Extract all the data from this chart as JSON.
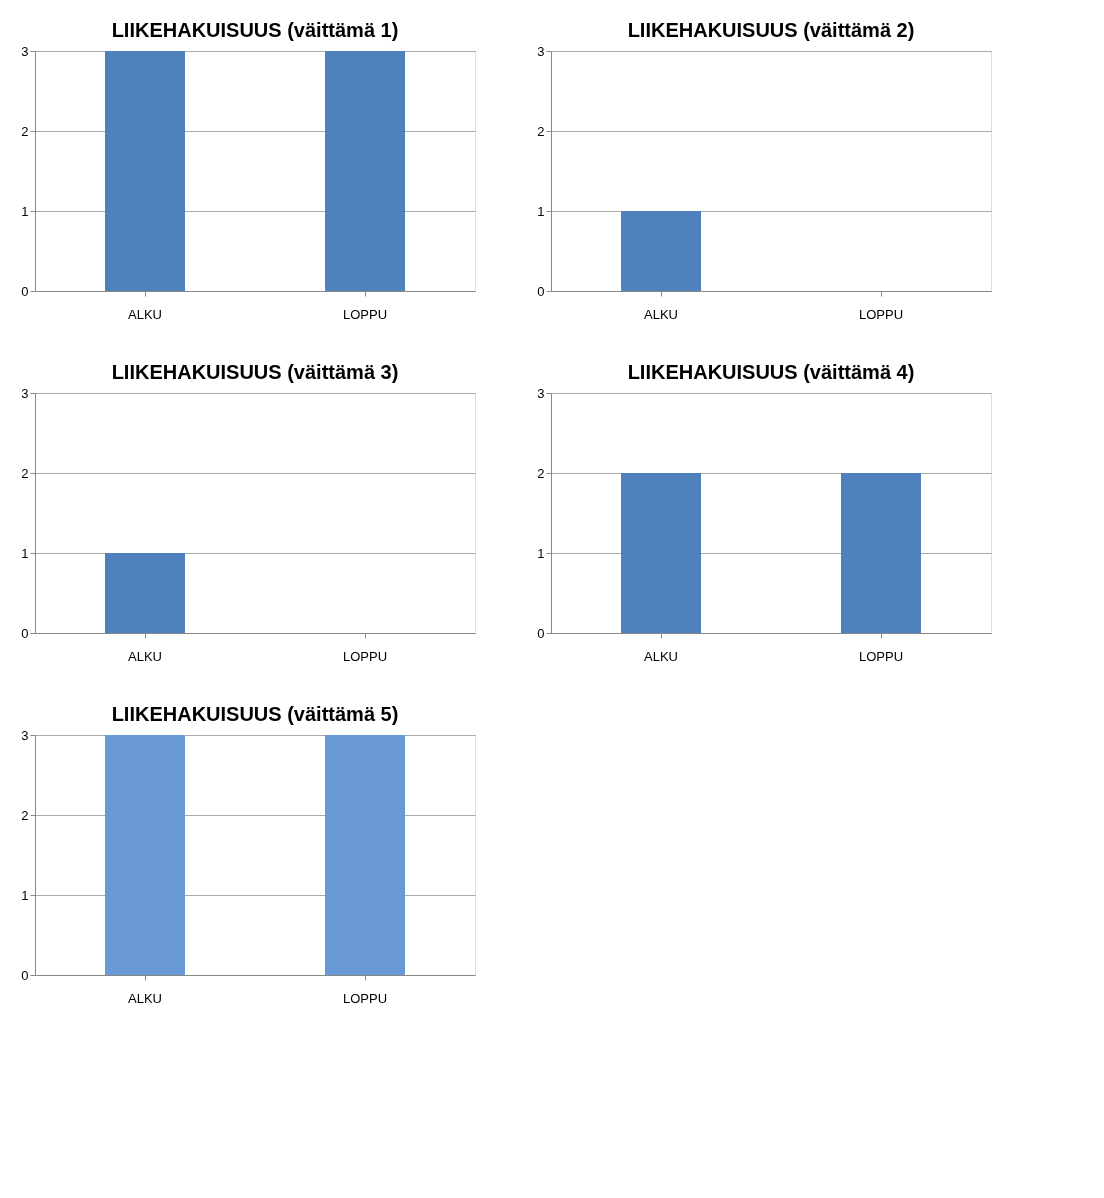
{
  "chart_data": [
    {
      "type": "bar",
      "title": "LIIKEHAKUISUUS (väittämä 1)",
      "categories": [
        "ALKU",
        "LOPPU"
      ],
      "values": [
        3,
        3
      ],
      "color": "#4f81bd",
      "ylim": [
        0,
        3
      ],
      "yticks": [
        0,
        1,
        2,
        3
      ],
      "grid": "y"
    },
    {
      "type": "bar",
      "title": "LIIKEHAKUISUUS (väittämä 2)",
      "categories": [
        "ALKU",
        "LOPPU"
      ],
      "values": [
        1,
        0
      ],
      "color": "#4f81bd",
      "ylim": [
        0,
        3
      ],
      "yticks": [
        0,
        1,
        2,
        3
      ],
      "grid": "y"
    },
    {
      "type": "bar",
      "title": "LIIKEHAKUISUUS (väittämä 3)",
      "categories": [
        "ALKU",
        "LOPPU"
      ],
      "values": [
        1,
        0
      ],
      "color": "#4f81bd",
      "ylim": [
        0,
        3
      ],
      "yticks": [
        0,
        1,
        2,
        3
      ],
      "grid": "y"
    },
    {
      "type": "bar",
      "title": "LIIKEHAKUISUUS (väittämä 4)",
      "categories": [
        "ALKU",
        "LOPPU"
      ],
      "values": [
        2,
        2
      ],
      "color": "#4f81bd",
      "ylim": [
        0,
        3
      ],
      "yticks": [
        0,
        1,
        2,
        3
      ],
      "grid": "y"
    },
    {
      "type": "bar",
      "title": "LIIKEHAKUISUUS (väittämä 5)",
      "categories": [
        "ALKU",
        "LOPPU"
      ],
      "values": [
        3,
        3
      ],
      "color": "#6a9ad6",
      "ylim": [
        0,
        3
      ],
      "yticks": [
        0,
        1,
        2,
        3
      ],
      "grid": "y"
    }
  ]
}
